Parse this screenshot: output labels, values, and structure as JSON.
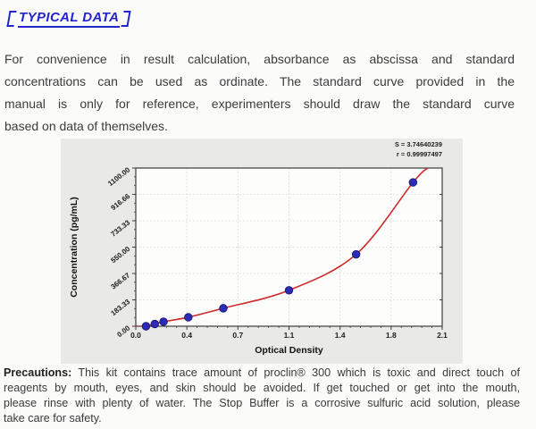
{
  "heading": {
    "bracket_open": "【",
    "text": "TYPICAL DATA",
    "bracket_close": "】",
    "color": "#2424cf"
  },
  "intro": {
    "lines": [
      "For convenience in result calculation, absorbance as abscissa and standard",
      "concentrations can be used as ordinate. The standard curve provided in the",
      "manual is only for reference, experimenters should draw the standard curve",
      "based on data of themselves."
    ]
  },
  "precautions": {
    "label": "Precautions:",
    "lines": [
      " This kit contains trace amount of proclin® 300 which is toxic and direct touch of",
      "reagents by mouth, eyes, and skin should be avoided. If get touched or get into the mouth,",
      "please rinse with plenty of water. The Stop Buffer is a corrosive sulfuric acid solution, please",
      "take care for safety."
    ]
  },
  "chart_data": {
    "type": "scatter",
    "title": "",
    "xlabel": "Optical Density",
    "ylabel": "Concentration (pg/mL)",
    "annotations": [
      "S = 3.74640239",
      "r = 0.99997497"
    ],
    "xlim": [
      0,
      2.1
    ],
    "ylim": [
      0,
      1100
    ],
    "grid": true,
    "legend": "none",
    "x_ticks": {
      "values": [
        0,
        0.35,
        0.7,
        1.05,
        1.4,
        1.75,
        2.1
      ],
      "labels": [
        "0.0",
        "0.4",
        "0.7",
        "1.1",
        "1.4",
        "1.8",
        "2.1"
      ]
    },
    "y_ticks": {
      "values": [
        0,
        183.33,
        366.67,
        550,
        733.33,
        916.66,
        1100
      ],
      "labels": [
        "0.00",
        "183.33",
        "366.67",
        "550.00",
        "733.33",
        "916.66",
        "1100.00"
      ]
    },
    "series": [
      {
        "name": "standard-points",
        "type": "scatter",
        "color": "#2b2bb4",
        "x": [
          0.07,
          0.13,
          0.19,
          0.36,
          0.6,
          1.05,
          1.51,
          1.9
        ],
        "y": [
          0,
          15.6,
          31.25,
          62.5,
          125,
          250,
          500,
          1000
        ]
      },
      {
        "name": "fitted-curve",
        "type": "line",
        "color": "#cc2a2a",
        "x": [
          0,
          0.07,
          0.13,
          0.19,
          0.36,
          0.6,
          1.05,
          1.51,
          1.9,
          2.0
        ],
        "y": [
          0,
          0,
          15.6,
          31.25,
          62.5,
          125,
          250,
          500,
          1000,
          1100
        ]
      }
    ],
    "colors": {
      "bg": "#e9e9e7",
      "plot_bg": "#fdfdfc",
      "grid": "#cfd4cf",
      "axis": "#3c3c3c",
      "point_stroke": "#14146e"
    }
  }
}
